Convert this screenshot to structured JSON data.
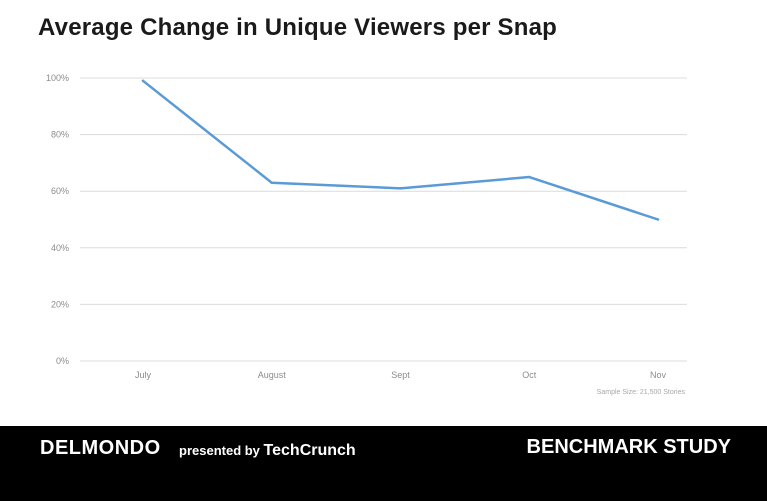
{
  "chart_data": {
    "type": "line",
    "title": "Average Change in Unique Viewers per Snap",
    "categories": [
      "July",
      "August",
      "Sept",
      "Oct",
      "Nov"
    ],
    "series": [
      {
        "values": [
          99,
          63,
          61,
          65,
          50
        ],
        "color": "#5b9bd5"
      }
    ],
    "y_ticks": [
      "0%",
      "20%",
      "40%",
      "60%",
      "80%",
      "100%"
    ],
    "y_tick_values": [
      0,
      20,
      40,
      60,
      80,
      100
    ],
    "ylim": [
      0,
      100
    ],
    "grid": true,
    "note": "Sample Size: 21,500 Stories"
  },
  "footer": {
    "brand": "DELMONDO",
    "presented_prefix": "presented by",
    "presented_name": "TechCrunch",
    "study": "BENCHMARK STUDY"
  }
}
